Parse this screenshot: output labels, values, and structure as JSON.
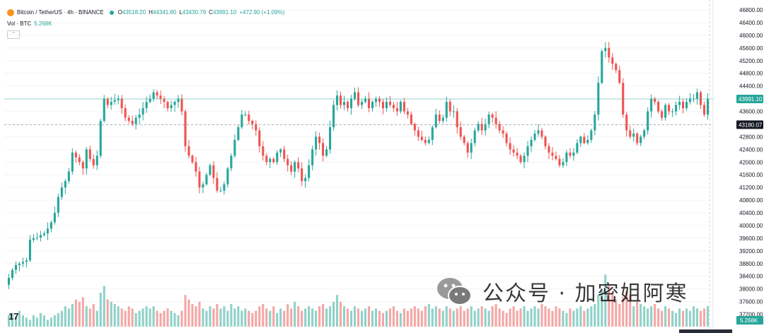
{
  "header": {
    "symbol": "Bitcoin / TetherUS · 4h · BINANCE",
    "o_label": "O",
    "o_value": "43518.20",
    "h_label": "H",
    "h_value": "44341.80",
    "l_label": "L",
    "l_value": "43430.79",
    "c_label": "C",
    "c_value": "43991.10",
    "change": "+472.90 (+1.09%)"
  },
  "volume_legend": {
    "label": "Vol · BTC",
    "value": "5.268K"
  },
  "collapse_glyph": "⌃",
  "tv_logo": "17",
  "watermark": {
    "text": "公众号 · 加密姐阿寒",
    "icon": "wechat-icon"
  },
  "colors": {
    "up": "#26a69a",
    "down": "#ef5350",
    "vol_up": "#8fd1c8",
    "vol_down": "#f4a7a5"
  },
  "chart_data": {
    "type": "candlestick",
    "interval": "4h",
    "ylim": [
      36900,
      46800
    ],
    "y_ticks": [
      "46800.00",
      "46400.00",
      "46000.00",
      "45600.00",
      "45200.00",
      "44800.00",
      "44400.00",
      "44000.00",
      "43600.00",
      "43200.00",
      "42800.00",
      "42400.00",
      "42000.00",
      "41600.00",
      "41200.00",
      "40800.00",
      "40400.00",
      "40000.00",
      "39600.00",
      "39200.00",
      "38800.00",
      "38400.00",
      "38000.00",
      "37600.00",
      "37200.00"
    ],
    "last_price": "43991.10",
    "crosshair_price": "43180.07",
    "volume_last": "5.268K",
    "closes": [
      38350,
      38600,
      38750,
      38800,
      38850,
      38900,
      39550,
      39600,
      39620,
      39700,
      39750,
      39900,
      40100,
      40400,
      40900,
      41200,
      41400,
      41700,
      42300,
      42150,
      42000,
      41800,
      42400,
      42100,
      41900,
      42200,
      43300,
      44000,
      43800,
      43900,
      43950,
      44000,
      43700,
      43400,
      43300,
      43200,
      43400,
      43500,
      43700,
      43900,
      44000,
      44200,
      44100,
      44000,
      43900,
      43700,
      43800,
      43900,
      44000,
      43600,
      42500,
      42200,
      42000,
      41700,
      41200,
      41300,
      41600,
      41900,
      41500,
      41100,
      41100,
      41300,
      41800,
      42200,
      42700,
      43100,
      43500,
      43500,
      43300,
      43200,
      43000,
      42500,
      42200,
      42000,
      42100,
      42000,
      42300,
      42400,
      42100,
      41900,
      41700,
      42000,
      41800,
      41400,
      41500,
      41900,
      42400,
      42800,
      42600,
      42200,
      42400,
      43100,
      43800,
      44100,
      43800,
      43900,
      43700,
      44000,
      44200,
      43800,
      43900,
      44000,
      43700,
      43900,
      44000,
      43900,
      43700,
      43900,
      43800,
      43700,
      43600,
      43900,
      43600,
      43500,
      43200,
      43000,
      42800,
      42700,
      42600,
      42700,
      43100,
      43500,
      43300,
      43400,
      43900,
      43600,
      43600,
      43100,
      42800,
      42600,
      42300,
      42600,
      43000,
      43200,
      43000,
      43200,
      43500,
      43400,
      43200,
      43000,
      42900,
      42600,
      42400,
      42300,
      42200,
      42000,
      42200,
      42500,
      42700,
      42900,
      43000,
      42800,
      42500,
      42300,
      42200,
      42100,
      41900,
      42000,
      42300,
      42200,
      42300,
      42600,
      42800,
      42600,
      42700,
      43000,
      43500,
      44500,
      45500,
      45600,
      45300,
      45100,
      44900,
      44500,
      43500,
      43000,
      42800,
      42900,
      42600,
      42800,
      43000,
      43600,
      44000,
      43900,
      43600,
      43400,
      43800,
      43600,
      43600,
      43800,
      43900,
      43700,
      43900,
      44000,
      44000,
      44200,
      43800,
      43500,
      43991
    ],
    "volumes": [
      5,
      6,
      4,
      7,
      5,
      4,
      3,
      5,
      4,
      6,
      5,
      3,
      4,
      5,
      6,
      7,
      9,
      8,
      10,
      12,
      11,
      13,
      9,
      8,
      10,
      7,
      15,
      18,
      12,
      11,
      10,
      9,
      8,
      7,
      9,
      8,
      6,
      7,
      8,
      9,
      8,
      9,
      7,
      6,
      7,
      8,
      7,
      6,
      5,
      7,
      14,
      12,
      10,
      9,
      11,
      8,
      7,
      9,
      8,
      10,
      8,
      9,
      7,
      10,
      8,
      9,
      7,
      8,
      7,
      6,
      7,
      9,
      10,
      8,
      7,
      9,
      6,
      8,
      7,
      10,
      8,
      11,
      9,
      7,
      8,
      9,
      8,
      7,
      9,
      10,
      8,
      9,
      11,
      14,
      11,
      9,
      8,
      7,
      9,
      8,
      7,
      8,
      9,
      7,
      8,
      7,
      6,
      7,
      8,
      9,
      7,
      6,
      8,
      7,
      8,
      9,
      8,
      7,
      9,
      10,
      8,
      9,
      8,
      7,
      9,
      8,
      7,
      8,
      9,
      7,
      8,
      9,
      7,
      8,
      9,
      8,
      7,
      9,
      10,
      8,
      7,
      6,
      8,
      9,
      7,
      8,
      9,
      7,
      8,
      9,
      8,
      10,
      9,
      8,
      7,
      9,
      8,
      7,
      6,
      8,
      7,
      8,
      9,
      7,
      8,
      9,
      10,
      14,
      16,
      23,
      18,
      15,
      12,
      10,
      13,
      16,
      14,
      9,
      11,
      10,
      9,
      8,
      9,
      10,
      8,
      7,
      9,
      8,
      7,
      6,
      8,
      7,
      8,
      7,
      9,
      8,
      7,
      8,
      9
    ]
  }
}
